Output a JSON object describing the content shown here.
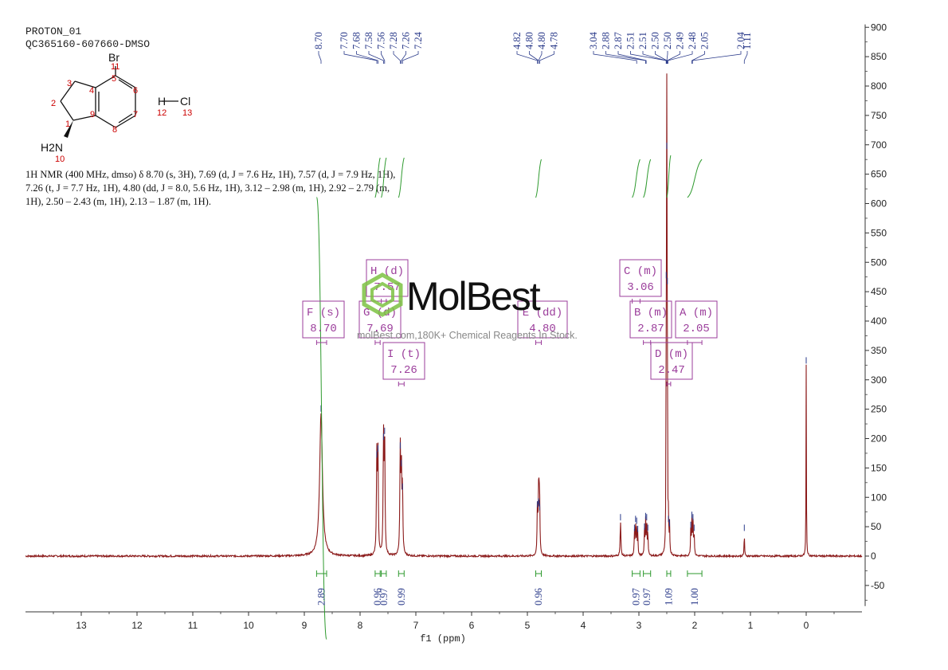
{
  "header": {
    "experiment": "PROTON_01",
    "sample": "QC365160-607660-DMSO"
  },
  "description": [
    "1H NMR (400 MHz, dmso) δ 8.70 (s, 3H), 7.69 (d, J = 7.6 Hz, 1H), 7.57 (d, J = 7.9 Hz, 1H),",
    "7.26 (t, J = 7.7 Hz, 1H), 4.80 (dd, J = 8.0, 5.6 Hz, 1H), 3.12 – 2.98 (m, 1H), 2.92 – 2.79 (m,",
    "1H), 2.50 – 2.43 (m, 1H), 2.13 – 1.87 (m, 1H)."
  ],
  "watermark": {
    "brand": "MolBest",
    "tagline": "molBest.com,180K+ Chemical Reagents In Stock."
  },
  "structure": {
    "atoms": [
      {
        "id": "Br",
        "text": "Br",
        "num": "11"
      },
      {
        "id": "1",
        "num": "1"
      },
      {
        "id": "2",
        "num": "2"
      },
      {
        "id": "3",
        "num": "3"
      },
      {
        "id": "4",
        "num": "4"
      },
      {
        "id": "5",
        "num": "5"
      },
      {
        "id": "6",
        "num": "6"
      },
      {
        "id": "7",
        "num": "7"
      },
      {
        "id": "8",
        "num": "8"
      },
      {
        "id": "9",
        "num": "9"
      },
      {
        "id": "N",
        "text": "H2N",
        "num": "10"
      },
      {
        "id": "H",
        "text": "H",
        "num": "12"
      },
      {
        "id": "Cl",
        "text": "Cl",
        "num": "13"
      }
    ]
  },
  "colors": {
    "spectrum": "#8b1a1a",
    "peak_labels": "#2a3a8a",
    "integral_curve": "#2e9a2e",
    "multiplet_box": "#9b3d9b",
    "atom_numbers": "#cc0000",
    "axis": "#333333"
  },
  "chart_data": {
    "type": "line",
    "xlabel": "f1 (ppm)",
    "xlim": [
      14,
      -1
    ],
    "x_reversed": true,
    "ylim": [
      -85,
      905
    ],
    "x_ticks": [
      13,
      12,
      11,
      10,
      9,
      8,
      7,
      6,
      5,
      4,
      3,
      2,
      1,
      0
    ],
    "y_ticks": [
      900,
      850,
      800,
      750,
      700,
      650,
      600,
      550,
      500,
      450,
      400,
      350,
      300,
      250,
      200,
      150,
      100,
      50,
      0,
      -50
    ],
    "peaks_ppm": [
      {
        "ppm": 8.7,
        "height": 243,
        "width": 0.03
      },
      {
        "ppm": 7.7,
        "height": 165,
        "width": 0.008
      },
      {
        "ppm": 7.68,
        "height": 175,
        "width": 0.008
      },
      {
        "ppm": 7.58,
        "height": 195,
        "width": 0.008
      },
      {
        "ppm": 7.56,
        "height": 205,
        "width": 0.008
      },
      {
        "ppm": 7.28,
        "height": 180,
        "width": 0.008
      },
      {
        "ppm": 7.26,
        "height": 150,
        "width": 0.008
      },
      {
        "ppm": 7.24,
        "height": 110,
        "width": 0.008
      },
      {
        "ppm": 4.82,
        "height": 80,
        "width": 0.007
      },
      {
        "ppm": 4.8,
        "height": 85,
        "width": 0.007
      },
      {
        "ppm": 4.79,
        "height": 82,
        "width": 0.007
      },
      {
        "ppm": 4.78,
        "height": 75,
        "width": 0.007
      },
      {
        "ppm": 3.33,
        "height": 58,
        "width": 0.008
      },
      {
        "ppm": 3.08,
        "height": 40,
        "width": 0.006
      },
      {
        "ppm": 3.06,
        "height": 55,
        "width": 0.006
      },
      {
        "ppm": 3.04,
        "height": 52,
        "width": 0.006
      },
      {
        "ppm": 3.02,
        "height": 38,
        "width": 0.006
      },
      {
        "ppm": 2.9,
        "height": 42,
        "width": 0.006
      },
      {
        "ppm": 2.88,
        "height": 60,
        "width": 0.006
      },
      {
        "ppm": 2.86,
        "height": 58,
        "width": 0.006
      },
      {
        "ppm": 2.84,
        "height": 40,
        "width": 0.006
      },
      {
        "ppm": 2.51,
        "height": 470,
        "width": 0.004
      },
      {
        "ppm": 2.5,
        "height": 690,
        "width": 0.004
      },
      {
        "ppm": 2.49,
        "height": 460,
        "width": 0.004
      },
      {
        "ppm": 2.47,
        "height": 55,
        "width": 0.005
      },
      {
        "ppm": 2.45,
        "height": 48,
        "width": 0.005
      },
      {
        "ppm": 2.07,
        "height": 45,
        "width": 0.006
      },
      {
        "ppm": 2.05,
        "height": 62,
        "width": 0.006
      },
      {
        "ppm": 2.03,
        "height": 58,
        "width": 0.006
      },
      {
        "ppm": 2.01,
        "height": 40,
        "width": 0.006
      },
      {
        "ppm": 1.11,
        "height": 40,
        "width": 0.005
      },
      {
        "ppm": 0.0,
        "height": 325,
        "width": 0.004
      }
    ],
    "peak_labels": [
      {
        "text": "8.70",
        "ppm": 8.7
      },
      {
        "text": "7.70",
        "ppm": 7.7
      },
      {
        "text": "7.68",
        "ppm": 7.68
      },
      {
        "text": "7.58",
        "ppm": 7.58
      },
      {
        "text": "7.56",
        "ppm": 7.56
      },
      {
        "text": "7.28",
        "ppm": 7.28
      },
      {
        "text": "7.26",
        "ppm": 7.26
      },
      {
        "text": "7.24",
        "ppm": 7.24
      },
      {
        "text": "4.82",
        "ppm": 4.82
      },
      {
        "text": "4.80",
        "ppm": 4.8
      },
      {
        "text": "4.80",
        "ppm": 4.8
      },
      {
        "text": "4.78",
        "ppm": 4.78
      },
      {
        "text": "3.04",
        "ppm": 3.04
      },
      {
        "text": "2.88",
        "ppm": 2.88
      },
      {
        "text": "2.87",
        "ppm": 2.87
      },
      {
        "text": "2.51",
        "ppm": 2.51
      },
      {
        "text": "2.51",
        "ppm": 2.51
      },
      {
        "text": "2.50",
        "ppm": 2.5
      },
      {
        "text": "2.50",
        "ppm": 2.5
      },
      {
        "text": "2.49",
        "ppm": 2.49
      },
      {
        "text": "2.48",
        "ppm": 2.48
      },
      {
        "text": "2.05",
        "ppm": 2.05
      },
      {
        "text": "2.04",
        "ppm": 2.04
      },
      {
        "text": "1.11",
        "ppm": 1.11
      }
    ],
    "integrals": [
      {
        "from": 8.78,
        "to": 8.6,
        "value": "2.89"
      },
      {
        "from": 7.73,
        "to": 7.64,
        "value": "0.96"
      },
      {
        "from": 7.62,
        "to": 7.53,
        "value": "0.97"
      },
      {
        "from": 7.31,
        "to": 7.21,
        "value": "0.99"
      },
      {
        "from": 4.85,
        "to": 4.75,
        "value": "0.96"
      },
      {
        "from": 3.12,
        "to": 2.98,
        "value": "0.97"
      },
      {
        "from": 2.92,
        "to": 2.79,
        "value": "0.97"
      },
      {
        "from": 2.5,
        "to": 2.43,
        "value": "1.09"
      },
      {
        "from": 2.13,
        "to": 1.87,
        "value": "1.00"
      }
    ],
    "multiplets": [
      {
        "label": "F (s)",
        "value": "8.70",
        "ppm": 8.7,
        "from": 8.78,
        "to": 8.6,
        "y": 420
      },
      {
        "label": "H (d)",
        "value": "7.57",
        "ppm": 7.57,
        "from": 7.62,
        "to": 7.53,
        "y": 480
      },
      {
        "label": "G (d)",
        "value": "7.69",
        "ppm": 7.69,
        "from": 7.73,
        "to": 7.64,
        "y": 420
      },
      {
        "label": "I (t)",
        "value": "7.26",
        "ppm": 7.26,
        "from": 7.31,
        "to": 7.21,
        "y": 347
      },
      {
        "label": "E (dd)",
        "value": "4.80",
        "ppm": 4.8,
        "from": 4.85,
        "to": 4.75,
        "y": 420
      },
      {
        "label": "C (m)",
        "value": "3.06",
        "ppm": 3.06,
        "from": 3.12,
        "to": 2.98,
        "y": 480
      },
      {
        "label": "B (m)",
        "value": "2.87",
        "ppm": 2.87,
        "from": 2.92,
        "to": 2.79,
        "y": 420
      },
      {
        "label": "A (m)",
        "value": "2.05",
        "ppm": 2.05,
        "from": 2.13,
        "to": 1.87,
        "y": 420
      },
      {
        "label": "D (m)",
        "value": "2.47",
        "ppm": 2.47,
        "from": 2.5,
        "to": 2.43,
        "y": 347
      }
    ]
  }
}
